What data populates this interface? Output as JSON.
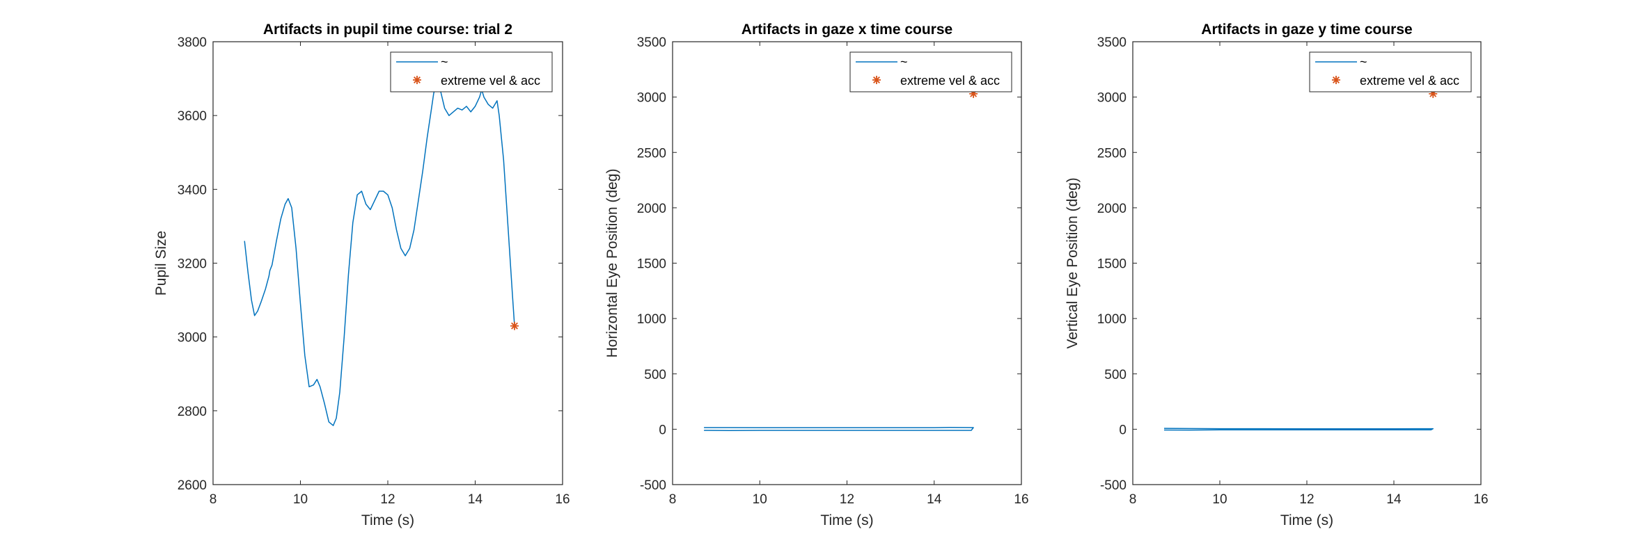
{
  "colors": {
    "line": "#0072BD",
    "marker": "#D95319",
    "axis": "#262626",
    "background": "#ffffff"
  },
  "chart_data": [
    {
      "type": "line",
      "title": "Artifacts in pupil time course: trial 2",
      "xlabel": "Time (s)",
      "ylabel": "Pupil Size",
      "xlim": [
        8,
        16
      ],
      "ylim": [
        2600,
        3800
      ],
      "xticks": [
        "8",
        "10",
        "12",
        "14",
        "16"
      ],
      "yticks": [
        "2600",
        "2800",
        "3000",
        "3200",
        "3400",
        "3600",
        "3800"
      ],
      "grid": false,
      "legend_position": "top-right",
      "legend": [
        "~",
        "extreme vel & acc"
      ],
      "series": [
        {
          "name": "~",
          "style": "line",
          "x": [
            8.72,
            8.8,
            8.88,
            8.95,
            9.02,
            9.1,
            9.2,
            9.28,
            9.3,
            9.35,
            9.45,
            9.55,
            9.65,
            9.72,
            9.8,
            9.9,
            10.0,
            10.1,
            10.2,
            10.3,
            10.38,
            10.45,
            10.55,
            10.65,
            10.75,
            10.82,
            10.9,
            11.0,
            11.1,
            11.2,
            11.3,
            11.4,
            11.5,
            11.6,
            11.7,
            11.8,
            11.9,
            12.0,
            12.1,
            12.2,
            12.3,
            12.4,
            12.5,
            12.6,
            12.7,
            12.8,
            12.9,
            13.0,
            13.05,
            13.1,
            13.2,
            13.3,
            13.4,
            13.5,
            13.6,
            13.7,
            13.8,
            13.9,
            14.0,
            14.1,
            14.15,
            14.2,
            14.3,
            14.4,
            14.5,
            14.55,
            14.65,
            14.75,
            14.85,
            14.9
          ],
          "y": [
            3260,
            3175,
            3100,
            3058,
            3070,
            3095,
            3130,
            3165,
            3180,
            3195,
            3260,
            3320,
            3360,
            3375,
            3350,
            3240,
            3090,
            2950,
            2865,
            2870,
            2885,
            2865,
            2820,
            2770,
            2760,
            2780,
            2850,
            3000,
            3170,
            3310,
            3385,
            3395,
            3360,
            3345,
            3370,
            3395,
            3395,
            3385,
            3350,
            3290,
            3240,
            3220,
            3240,
            3290,
            3370,
            3450,
            3540,
            3620,
            3660,
            3680,
            3670,
            3620,
            3600,
            3610,
            3620,
            3615,
            3625,
            3610,
            3625,
            3650,
            3670,
            3650,
            3630,
            3620,
            3640,
            3600,
            3480,
            3300,
            3120,
            3030
          ]
        },
        {
          "name": "extreme vel & acc",
          "style": "marker",
          "x": [
            14.9
          ],
          "y": [
            3030
          ]
        }
      ]
    },
    {
      "type": "line",
      "title": "Artifacts in gaze x time course",
      "xlabel": "Time (s)",
      "ylabel": "Horizontal Eye Position (deg)",
      "xlim": [
        8,
        16
      ],
      "ylim": [
        -500,
        3500
      ],
      "xticks": [
        "8",
        "10",
        "12",
        "14",
        "16"
      ],
      "yticks": [
        "-500",
        "0",
        "500",
        "1000",
        "1500",
        "2000",
        "2500",
        "3000",
        "3500"
      ],
      "grid": false,
      "legend_position": "top-right",
      "legend": [
        "~",
        "extreme vel & acc"
      ],
      "series": [
        {
          "name": "~",
          "style": "line",
          "x": [
            8.72,
            9.3,
            10.0,
            11.0,
            12.0,
            13.0,
            14.0,
            14.35,
            14.9,
            14.85,
            14.0,
            13.0,
            12.0,
            11.0,
            10.0,
            9.3,
            8.72
          ],
          "y": [
            15,
            15,
            14,
            14,
            14,
            14,
            14,
            16,
            15,
            -10,
            -10,
            -10,
            -10,
            -10,
            -10,
            -12,
            -10
          ]
        },
        {
          "name": "extreme vel & acc",
          "style": "marker",
          "x": [
            14.9
          ],
          "y": [
            3030
          ]
        }
      ]
    },
    {
      "type": "line",
      "title": "Artifacts in gaze y time course",
      "xlabel": "Time (s)",
      "ylabel": "Vertical Eye Position (deg)",
      "xlim": [
        8,
        16
      ],
      "ylim": [
        -500,
        3500
      ],
      "xticks": [
        "8",
        "10",
        "12",
        "14",
        "16"
      ],
      "yticks": [
        "-500",
        "0",
        "500",
        "1000",
        "1500",
        "2000",
        "2500",
        "3000",
        "3500"
      ],
      "grid": false,
      "legend_position": "top-right",
      "legend": [
        "~",
        "extreme vel & acc"
      ],
      "series": [
        {
          "name": "~",
          "style": "line",
          "x": [
            8.72,
            9.3,
            10.0,
            11.0,
            12.0,
            13.0,
            14.0,
            14.9,
            14.85,
            14.0,
            13.0,
            12.0,
            11.0,
            10.0,
            9.3,
            8.72
          ],
          "y": [
            8,
            6,
            5,
            5,
            4,
            4,
            4,
            5,
            -6,
            -6,
            -5,
            -5,
            -5,
            -6,
            -8,
            -7
          ]
        },
        {
          "name": "extreme vel & acc",
          "style": "marker",
          "x": [
            14.9
          ],
          "y": [
            3030
          ]
        }
      ]
    }
  ]
}
